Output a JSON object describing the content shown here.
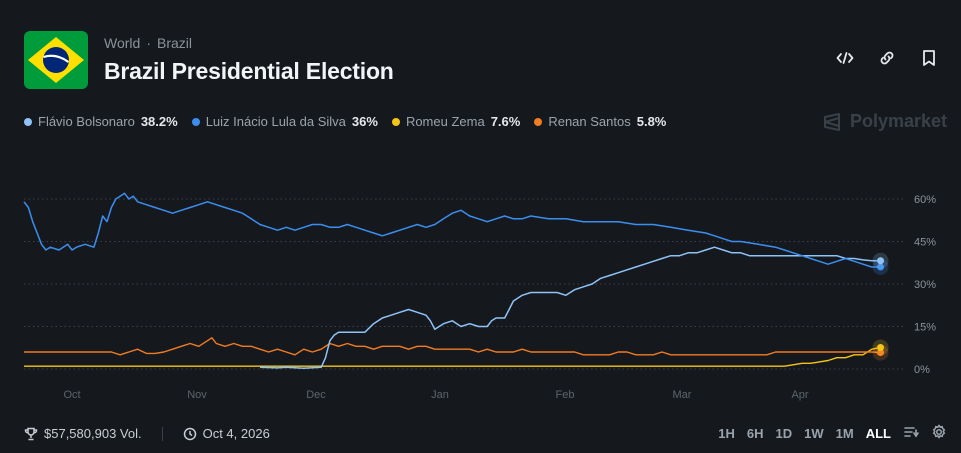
{
  "header": {
    "breadcrumb": [
      "World",
      "Brazil"
    ],
    "breadcrumb_sep": "·",
    "title": "Brazil Presidential Election",
    "actions": [
      "embed-icon",
      "link-icon",
      "bookmark-icon"
    ]
  },
  "legend": [
    {
      "name": "Flávio Bolsonaro",
      "pct": "38.2%",
      "color": "#8fc3f7"
    },
    {
      "name": "Luiz Inácio Lula da Silva",
      "pct": "36%",
      "color": "#3b8ef0"
    },
    {
      "name": "Romeu Zema",
      "pct": "7.6%",
      "color": "#f5c518"
    },
    {
      "name": "Renan Santos",
      "pct": "5.8%",
      "color": "#f37b21"
    }
  ],
  "brand": "Polymarket",
  "footer": {
    "volume": "$57,580,903 Vol.",
    "date": "Oct 4, 2026",
    "ranges": [
      "1H",
      "6H",
      "1D",
      "1W",
      "1M",
      "ALL"
    ],
    "active_range": "ALL"
  },
  "chart_data": {
    "type": "line",
    "x_ticks": [
      "Oct",
      "Nov",
      "Dec",
      "Jan",
      "Feb",
      "Mar",
      "Apr"
    ],
    "y_ticks": [
      "60%",
      "45%",
      "30%",
      "15%",
      "0%"
    ],
    "ylim": [
      0,
      65
    ],
    "x_range": [
      0,
      100
    ],
    "series": [
      {
        "name": "Luiz Inácio Lula da Silva",
        "color": "#3b8ef0",
        "points": [
          [
            0,
            59
          ],
          [
            0.5,
            57
          ],
          [
            1,
            52
          ],
          [
            1.5,
            48
          ],
          [
            2,
            44
          ],
          [
            2.5,
            42
          ],
          [
            3,
            43
          ],
          [
            4,
            42
          ],
          [
            5,
            44
          ],
          [
            5.5,
            42
          ],
          [
            6,
            43
          ],
          [
            7,
            44
          ],
          [
            8,
            43
          ],
          [
            8.5,
            48
          ],
          [
            9,
            54
          ],
          [
            9.5,
            52
          ],
          [
            10,
            57
          ],
          [
            10.5,
            60
          ],
          [
            11,
            61
          ],
          [
            11.5,
            62
          ],
          [
            12,
            60
          ],
          [
            12.5,
            61
          ],
          [
            13,
            59
          ],
          [
            14,
            58
          ],
          [
            15,
            57
          ],
          [
            16,
            56
          ],
          [
            17,
            55
          ],
          [
            18,
            56
          ],
          [
            19,
            57
          ],
          [
            20,
            58
          ],
          [
            21,
            59
          ],
          [
            22,
            58
          ],
          [
            23,
            57
          ],
          [
            24,
            56
          ],
          [
            25,
            55
          ],
          [
            26,
            53
          ],
          [
            27,
            51
          ],
          [
            28,
            50
          ],
          [
            29,
            49
          ],
          [
            30,
            50
          ],
          [
            31,
            49
          ],
          [
            32,
            50
          ],
          [
            33,
            51
          ],
          [
            34,
            51
          ],
          [
            35,
            50
          ],
          [
            36,
            50
          ],
          [
            37,
            51
          ],
          [
            38,
            50
          ],
          [
            39,
            49
          ],
          [
            40,
            48
          ],
          [
            41,
            47
          ],
          [
            42,
            48
          ],
          [
            43,
            49
          ],
          [
            44,
            50
          ],
          [
            45,
            51
          ],
          [
            46,
            50
          ],
          [
            47,
            51
          ],
          [
            48,
            53
          ],
          [
            49,
            55
          ],
          [
            50,
            56
          ],
          [
            51,
            54
          ],
          [
            52,
            53
          ],
          [
            53,
            52
          ],
          [
            54,
            53
          ],
          [
            55,
            54
          ],
          [
            56,
            53
          ],
          [
            57,
            53
          ],
          [
            58,
            54
          ],
          [
            60,
            53
          ],
          [
            62,
            53
          ],
          [
            64,
            52
          ],
          [
            66,
            52
          ],
          [
            68,
            52
          ],
          [
            70,
            51
          ],
          [
            72,
            51
          ],
          [
            74,
            50
          ],
          [
            76,
            49
          ],
          [
            78,
            48
          ],
          [
            79,
            47
          ],
          [
            80,
            46
          ],
          [
            81,
            45
          ],
          [
            82,
            45
          ],
          [
            84,
            44
          ],
          [
            86,
            43
          ],
          [
            87,
            42
          ],
          [
            88,
            41
          ],
          [
            89,
            40
          ],
          [
            90,
            39
          ],
          [
            91,
            38
          ],
          [
            92,
            37
          ],
          [
            93,
            38
          ],
          [
            94,
            39
          ],
          [
            95,
            38
          ],
          [
            96,
            37
          ],
          [
            97,
            36
          ],
          [
            98,
            36
          ]
        ]
      },
      {
        "name": "Flávio Bolsonaro",
        "color": "#8fc3f7",
        "points": [
          [
            27,
            0.6
          ],
          [
            29,
            0.4
          ],
          [
            30,
            0.6
          ],
          [
            32,
            0.3
          ],
          [
            34,
            0.6
          ],
          [
            34.5,
            4
          ],
          [
            35,
            10
          ],
          [
            35.5,
            12
          ],
          [
            36,
            13
          ],
          [
            37,
            13
          ],
          [
            38,
            13
          ],
          [
            39,
            13
          ],
          [
            40,
            16
          ],
          [
            41,
            18
          ],
          [
            42,
            19
          ],
          [
            43,
            20
          ],
          [
            44,
            21
          ],
          [
            45,
            20
          ],
          [
            46,
            19
          ],
          [
            46.5,
            17
          ],
          [
            47,
            14
          ],
          [
            48,
            16
          ],
          [
            49,
            17
          ],
          [
            50,
            15
          ],
          [
            51,
            16
          ],
          [
            52,
            15
          ],
          [
            53,
            15
          ],
          [
            53.5,
            17
          ],
          [
            54,
            18
          ],
          [
            55,
            18
          ],
          [
            55.5,
            21
          ],
          [
            56,
            24
          ],
          [
            57,
            26
          ],
          [
            58,
            27
          ],
          [
            59,
            27
          ],
          [
            60,
            27
          ],
          [
            61,
            27
          ],
          [
            62,
            26
          ],
          [
            63,
            28
          ],
          [
            64,
            29
          ],
          [
            65,
            30
          ],
          [
            66,
            32
          ],
          [
            67,
            33
          ],
          [
            68,
            34
          ],
          [
            69,
            35
          ],
          [
            70,
            36
          ],
          [
            71,
            37
          ],
          [
            72,
            38
          ],
          [
            73,
            39
          ],
          [
            74,
            40
          ],
          [
            75,
            40
          ],
          [
            76,
            41
          ],
          [
            77,
            41
          ],
          [
            78,
            42
          ],
          [
            79,
            43
          ],
          [
            80,
            42
          ],
          [
            81,
            41
          ],
          [
            82,
            41
          ],
          [
            83,
            40
          ],
          [
            84,
            40
          ],
          [
            85,
            40
          ],
          [
            86,
            40
          ],
          [
            87,
            40
          ],
          [
            88,
            40
          ],
          [
            89,
            40
          ],
          [
            90,
            40
          ],
          [
            91,
            40
          ],
          [
            92,
            40
          ],
          [
            93,
            40
          ],
          [
            94,
            39
          ],
          [
            95,
            39
          ],
          [
            96,
            38.5
          ],
          [
            97,
            38.2
          ],
          [
            98,
            38.2
          ]
        ]
      },
      {
        "name": "Renan Santos",
        "color": "#f37b21",
        "points": [
          [
            0,
            6
          ],
          [
            10,
            6
          ],
          [
            11,
            5
          ],
          [
            12,
            6
          ],
          [
            13,
            7
          ],
          [
            14,
            5.5
          ],
          [
            15,
            5.5
          ],
          [
            16,
            6
          ],
          [
            17,
            7
          ],
          [
            18,
            8
          ],
          [
            19,
            9
          ],
          [
            20,
            8
          ],
          [
            21,
            10
          ],
          [
            21.5,
            11
          ],
          [
            22,
            9
          ],
          [
            23,
            8
          ],
          [
            24,
            9
          ],
          [
            25,
            8
          ],
          [
            26,
            8
          ],
          [
            27,
            7
          ],
          [
            28,
            6
          ],
          [
            29,
            7
          ],
          [
            30,
            6
          ],
          [
            31,
            5
          ],
          [
            32,
            7
          ],
          [
            33,
            6
          ],
          [
            34,
            7
          ],
          [
            35,
            9
          ],
          [
            36,
            8
          ],
          [
            37,
            9
          ],
          [
            38,
            8
          ],
          [
            39,
            8
          ],
          [
            40,
            7
          ],
          [
            41,
            8
          ],
          [
            42,
            8
          ],
          [
            43,
            8
          ],
          [
            44,
            7
          ],
          [
            45,
            8
          ],
          [
            46,
            8
          ],
          [
            47,
            7
          ],
          [
            48,
            7
          ],
          [
            49,
            7
          ],
          [
            50,
            7
          ],
          [
            51,
            7
          ],
          [
            52,
            6
          ],
          [
            53,
            7
          ],
          [
            54,
            6
          ],
          [
            55,
            6
          ],
          [
            56,
            6
          ],
          [
            57,
            7
          ],
          [
            58,
            6
          ],
          [
            59,
            6
          ],
          [
            60,
            6
          ],
          [
            61,
            6
          ],
          [
            62,
            6
          ],
          [
            63,
            6
          ],
          [
            64,
            5
          ],
          [
            65,
            5
          ],
          [
            66,
            5
          ],
          [
            67,
            5
          ],
          [
            68,
            6
          ],
          [
            69,
            6
          ],
          [
            70,
            5
          ],
          [
            71,
            5
          ],
          [
            72,
            5
          ],
          [
            73,
            6
          ],
          [
            74,
            5
          ],
          [
            75,
            5
          ],
          [
            76,
            5
          ],
          [
            77,
            5
          ],
          [
            78,
            5
          ],
          [
            79,
            5
          ],
          [
            80,
            5
          ],
          [
            81,
            5
          ],
          [
            82,
            5
          ],
          [
            83,
            5
          ],
          [
            84,
            5
          ],
          [
            85,
            5
          ],
          [
            86,
            6
          ],
          [
            87,
            6
          ],
          [
            88,
            6
          ],
          [
            89,
            6
          ],
          [
            90,
            6
          ],
          [
            91,
            6
          ],
          [
            92,
            6
          ],
          [
            93,
            6
          ],
          [
            94,
            6
          ],
          [
            95,
            6
          ],
          [
            96,
            6
          ],
          [
            97,
            6
          ],
          [
            98,
            5.8
          ]
        ]
      },
      {
        "name": "Romeu Zema",
        "color": "#f5c518",
        "points": [
          [
            0,
            1
          ],
          [
            87,
            1
          ],
          [
            88,
            1.5
          ],
          [
            89,
            2
          ],
          [
            90,
            2
          ],
          [
            91,
            2.5
          ],
          [
            92,
            3
          ],
          [
            93,
            4
          ],
          [
            94,
            4
          ],
          [
            95,
            5
          ],
          [
            96,
            5
          ],
          [
            97,
            7
          ],
          [
            98,
            7.6
          ]
        ]
      }
    ]
  }
}
